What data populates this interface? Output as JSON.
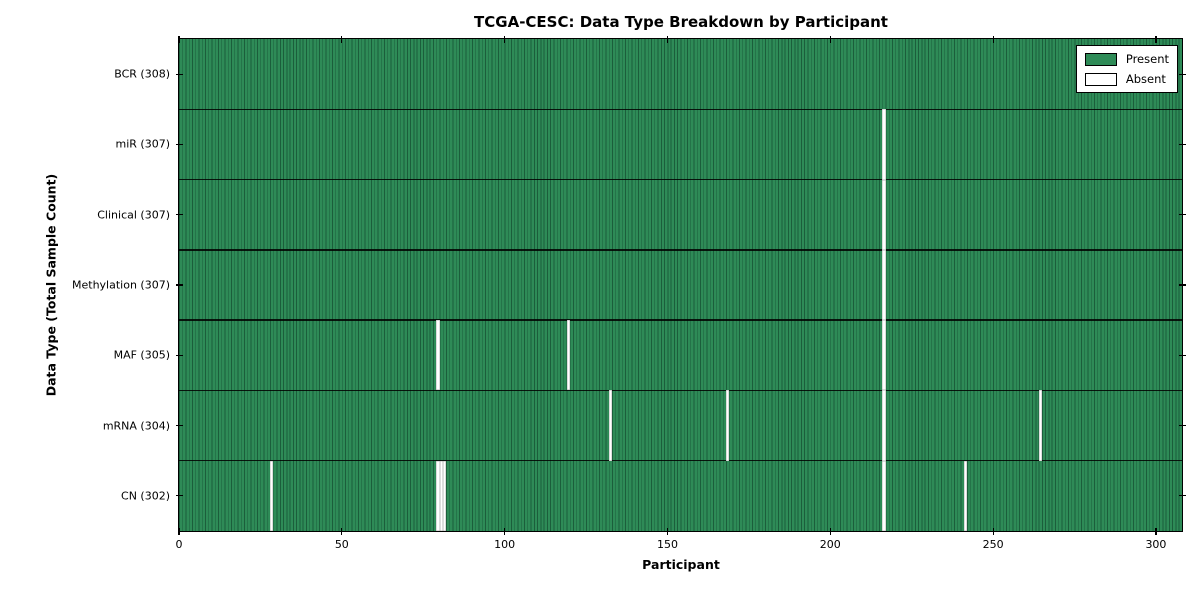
{
  "chart_data": {
    "type": "heatmap",
    "title": "TCGA-CESC: Data Type Breakdown by Participant",
    "xlabel": "Participant",
    "ylabel": "Data Type (Total Sample Count)",
    "x_ticks": [
      0,
      50,
      100,
      150,
      200,
      250,
      300
    ],
    "xlim": [
      0,
      308
    ],
    "n_participants": 308,
    "grid": false,
    "legend": {
      "position": "upper right",
      "entries": [
        {
          "label": "Present",
          "color": "#2e8b57"
        },
        {
          "label": "Absent",
          "color": "#ffffff"
        }
      ]
    },
    "rows": [
      {
        "label": "BCR (308)",
        "data_type": "BCR",
        "present_count": 308,
        "absent_participants": []
      },
      {
        "label": "miR (307)",
        "data_type": "miR",
        "present_count": 307,
        "absent_participants": [
          216
        ]
      },
      {
        "label": "Clinical (307)",
        "data_type": "Clinical",
        "present_count": 307,
        "absent_participants": [
          216
        ]
      },
      {
        "label": "Methylation (307)",
        "data_type": "Methylation",
        "present_count": 307,
        "absent_participants": [
          216
        ]
      },
      {
        "label": "MAF (305)",
        "data_type": "MAF",
        "present_count": 305,
        "absent_participants": [
          79,
          119,
          216
        ]
      },
      {
        "label": "mRNA (304)",
        "data_type": "mRNA",
        "present_count": 304,
        "absent_participants": [
          132,
          168,
          216,
          264
        ]
      },
      {
        "label": "CN (302)",
        "data_type": "CN",
        "present_count": 302,
        "absent_participants": [
          28,
          79,
          80,
          81,
          216,
          241
        ]
      }
    ],
    "colors": {
      "present": "#2e8b57",
      "present_edge": "#1b5e3b",
      "absent": "#ffffff",
      "frame": "#000000",
      "background": "#ffffff"
    }
  }
}
